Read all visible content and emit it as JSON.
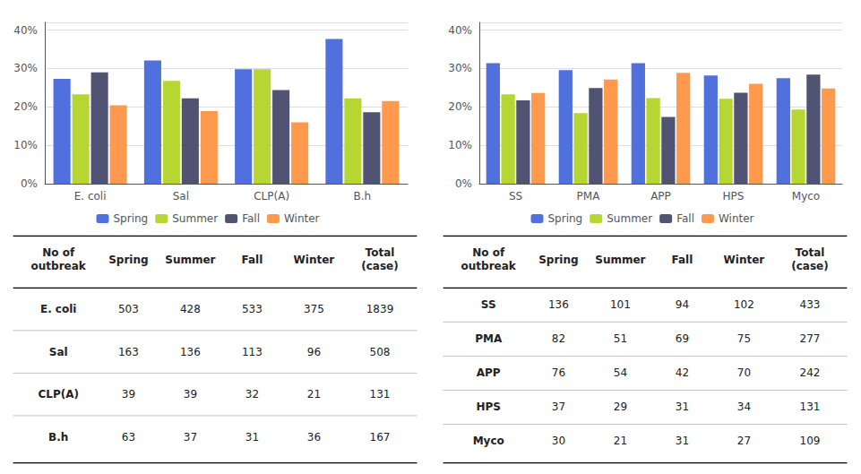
{
  "chart_data": [
    {
      "type": "bar",
      "categories": [
        "E. coli",
        "Sal",
        "CLP(A)",
        "B.h"
      ],
      "series": [
        {
          "name": "Spring",
          "values": [
            0.273,
            0.321,
            0.298,
            0.377
          ]
        },
        {
          "name": "Summer",
          "values": [
            0.233,
            0.268,
            0.298,
            0.222
          ]
        },
        {
          "name": "Fall",
          "values": [
            0.29,
            0.222,
            0.244,
            0.186
          ]
        },
        {
          "name": "Winter",
          "values": [
            0.204,
            0.189,
            0.16,
            0.215
          ]
        }
      ],
      "ylim": [
        0,
        0.42
      ],
      "yticks": [
        {
          "value": 0,
          "label": "0%"
        },
        {
          "value": 0.1,
          "label": "10%"
        },
        {
          "value": 0.2,
          "label": "20%"
        },
        {
          "value": 0.3,
          "label": "30%"
        },
        {
          "value": 0.4,
          "label": "40%"
        }
      ],
      "grid": true,
      "legend": "bottom"
    },
    {
      "type": "bar",
      "categories": [
        "SS",
        "PMA",
        "APP",
        "HPS",
        "Myco"
      ],
      "series": [
        {
          "name": "Spring",
          "values": [
            0.314,
            0.296,
            0.314,
            0.282,
            0.275
          ]
        },
        {
          "name": "Summer",
          "values": [
            0.233,
            0.184,
            0.223,
            0.221,
            0.193
          ]
        },
        {
          "name": "Fall",
          "values": [
            0.217,
            0.249,
            0.174,
            0.237,
            0.284
          ]
        },
        {
          "name": "Winter",
          "values": [
            0.236,
            0.271,
            0.289,
            0.26,
            0.248
          ]
        }
      ],
      "ylim": [
        0,
        0.42
      ],
      "yticks": [
        {
          "value": 0,
          "label": "0%"
        },
        {
          "value": 0.1,
          "label": "10%"
        },
        {
          "value": 0.2,
          "label": "20%"
        },
        {
          "value": 0.3,
          "label": "30%"
        },
        {
          "value": 0.4,
          "label": "40%"
        }
      ],
      "grid": true,
      "legend": "bottom"
    },
    {
      "type": "table",
      "columns": [
        "No of\noutbreak",
        "Spring",
        "Summer",
        "Fall",
        "Winter",
        "Total\n(case)"
      ],
      "rows": [
        {
          "label": "E. coli",
          "values": [
            503,
            428,
            533,
            375,
            1839
          ]
        },
        {
          "label": "Sal",
          "values": [
            163,
            136,
            113,
            96,
            508
          ]
        },
        {
          "label": "CLP(A)",
          "values": [
            39,
            39,
            32,
            21,
            131
          ]
        },
        {
          "label": "B.h",
          "values": [
            63,
            37,
            31,
            36,
            167
          ]
        }
      ]
    },
    {
      "type": "table",
      "columns": [
        "No of\noutbreak",
        "Spring",
        "Summer",
        "Fall",
        "Winter",
        "Total\n(case)"
      ],
      "rows": [
        {
          "label": "SS",
          "values": [
            136,
            101,
            94,
            102,
            433
          ]
        },
        {
          "label": "PMA",
          "values": [
            82,
            51,
            69,
            75,
            277
          ]
        },
        {
          "label": "APP",
          "values": [
            76,
            54,
            42,
            70,
            242
          ]
        },
        {
          "label": "HPS",
          "values": [
            37,
            29,
            31,
            34,
            131
          ]
        },
        {
          "label": "Myco",
          "values": [
            30,
            21,
            31,
            27,
            109
          ]
        }
      ]
    }
  ]
}
